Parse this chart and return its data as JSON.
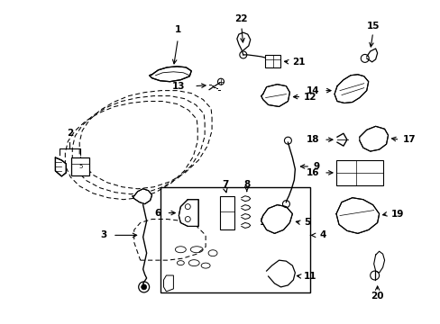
{
  "bg_color": "#ffffff",
  "fig_width": 4.89,
  "fig_height": 3.6,
  "dpi": 100,
  "line_color": "#000000",
  "label_fontsize": 7.5
}
